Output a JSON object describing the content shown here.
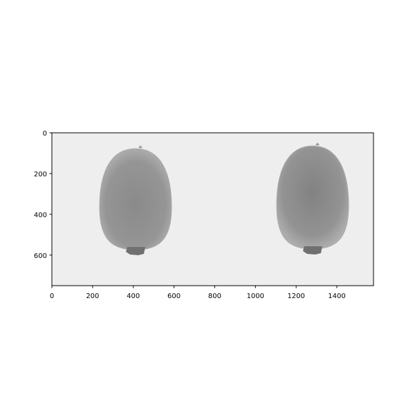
{
  "chart_data": {
    "type": "image",
    "xlim": [
      0,
      1580
    ],
    "ylim": [
      750,
      0
    ],
    "xticks": [
      0,
      200,
      400,
      600,
      800,
      1000,
      1200,
      1400
    ],
    "yticks": [
      0,
      200,
      400,
      600
    ]
  }
}
